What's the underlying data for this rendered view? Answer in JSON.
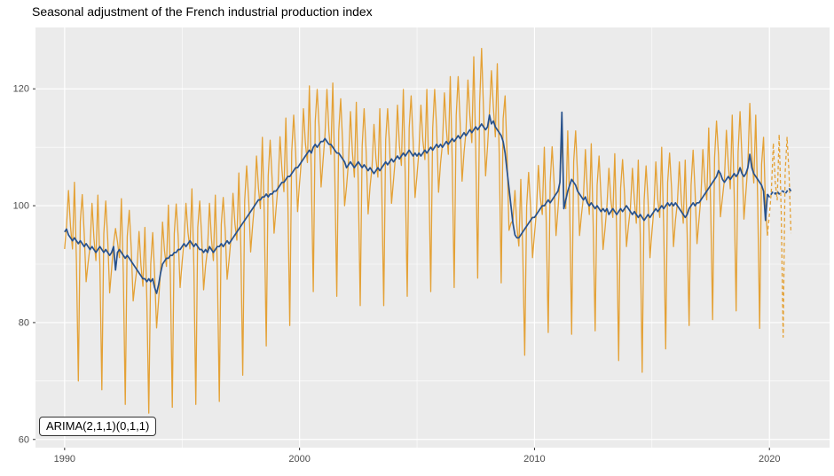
{
  "title": "Seasonal adjustment of the French industrial production index",
  "chart_data": {
    "type": "line",
    "title": "Seasonal adjustment of the French industrial production index",
    "xlabel": "",
    "ylabel": "",
    "frequency": "monthly",
    "xlim": [
      1988.76,
      2022.56
    ],
    "ylim": [
      58.6,
      130.5
    ],
    "x_ticks": {
      "values": [
        1990,
        2000,
        2010,
        2020
      ],
      "labels": [
        "1990",
        "2000",
        "2010",
        "2020"
      ]
    },
    "y_ticks": {
      "values": [
        60,
        80,
        100,
        120
      ],
      "labels": [
        "60",
        "80",
        "100",
        "120"
      ]
    },
    "x_minor": [
      1995,
      2005,
      2015
    ],
    "y_minor": [
      70,
      90,
      110
    ],
    "grid": true,
    "legend": "none",
    "annotation": {
      "text": "ARIMA(2,1,1)(0,1,1)"
    },
    "colors": {
      "raw": "#E4A135",
      "adjusted": "#27518C",
      "panel_bg": "#EBEBEB",
      "grid": "#FFFFFF",
      "tick_text": "#4D4D4D",
      "tick_mark": "#333333"
    },
    "series": [
      {
        "name": "raw-index-observed",
        "style": "solid",
        "color_key": "raw",
        "start": 1990,
        "values": [
          92.6,
          96.5,
          102.6,
          96.4,
          92.6,
          104.0,
          90.7,
          70.0,
          97.3,
          101.9,
          95.3,
          87.0,
          90.2,
          93.0,
          100.4,
          94.4,
          90.6,
          101.8,
          89.7,
          68.5,
          95.2,
          100.8,
          94.3,
          85.1,
          89.2,
          93.5,
          96.1,
          93.8,
          91.1,
          101.2,
          88.3,
          66.0,
          94.7,
          99.2,
          92.8,
          83.7,
          86.8,
          89.4,
          95.6,
          89.8,
          86.2,
          96.3,
          84.0,
          64.5,
          90.0,
          95.4,
          88.2,
          79.1,
          83.9,
          88.9,
          97.2,
          92.3,
          89.6,
          100.1,
          88.3,
          65.5,
          95.2,
          100.3,
          94.8,
          86.0,
          90.2,
          94.0,
          100.4,
          95.4,
          92.6,
          102.9,
          89.7,
          66.0,
          96.3,
          100.8,
          94.8,
          85.6,
          89.7,
          92.5,
          100.4,
          94.4,
          90.6,
          101.8,
          89.7,
          66.5,
          96.8,
          101.4,
          95.8,
          87.4,
          90.7,
          94.5,
          102.1,
          96.9,
          94.1,
          105.6,
          93.1,
          71.0,
          100.9,
          106.8,
          101.0,
          92.1,
          96.5,
          100.5,
          108.5,
          103.0,
          99.5,
          111.7,
          98.0,
          76.0,
          105.1,
          111.2,
          104.6,
          95.3,
          99.4,
          103.5,
          111.8,
          106.1,
          102.4,
          115.0,
          101.3,
          79.5,
          109.2,
          115.5,
          109.2,
          99.0,
          103.8,
          108.0,
          116.6,
          110.7,
          107.4,
          120.5,
          105.2,
          85.3,
          114.4,
          119.9,
          113.3,
          103.2,
          107.7,
          112.1,
          119.9,
          112.7,
          108.8,
          121.0,
          105.7,
          84.5,
          112.8,
          118.3,
          110.7,
          100.0,
          103.3,
          107.5,
          116.1,
          109.1,
          104.9,
          117.7,
          103.7,
          82.9,
          110.2,
          116.6,
          109.2,
          98.6,
          103.3,
          106.5,
          113.9,
          108.1,
          104.9,
          116.6,
          102.8,
          82.9,
          111.3,
          116.6,
          110.2,
          100.4,
          104.3,
          108.5,
          117.2,
          110.2,
          106.9,
          119.9,
          104.7,
          84.5,
          113.3,
          118.8,
          111.2,
          101.4,
          105.2,
          109.5,
          117.2,
          111.2,
          107.9,
          119.9,
          105.7,
          85.3,
          113.3,
          119.9,
          113.3,
          102.3,
          107.2,
          110.6,
          119.3,
          113.2,
          108.8,
          122.1,
          107.6,
          86.0,
          115.4,
          122.1,
          114.3,
          104.2,
          109.1,
          112.6,
          121.5,
          115.3,
          110.8,
          125.5,
          109.5,
          87.6,
          117.5,
          126.9,
          116.3,
          105.1,
          110.1,
          116.1,
          123.1,
          116.8,
          111.8,
          124.3,
          108.6,
          86.8,
          114.9,
          118.8,
          108.7,
          95.8,
          97.0,
          97.5,
          102.6,
          96.4,
          93.1,
          104.5,
          92.2,
          74.4,
          99.9,
          105.7,
          99.9,
          91.1,
          95.1,
          99.0,
          106.9,
          101.5,
          98.5,
          110.0,
          97.0,
          78.3,
          104.0,
          110.1,
          104.0,
          94.9,
          99.4,
          104.5,
          111.8,
          101.5,
          99.5,
          112.8,
          99.9,
          78.0,
          107.6,
          112.8,
          105.1,
          94.9,
          98.5,
          101.5,
          109.6,
          102.5,
          98.5,
          110.6,
          96.5,
          78.6,
          103.5,
          108.5,
          101.5,
          92.5,
          96.0,
          100.0,
          106.4,
          101.0,
          98.0,
          108.9,
          95.1,
          73.5,
          103.0,
          107.9,
          102.0,
          93.0,
          96.5,
          99.5,
          106.4,
          101.0,
          97.0,
          107.8,
          95.1,
          71.5,
          100.9,
          106.8,
          101.0,
          91.1,
          95.5,
          99.5,
          107.5,
          101.0,
          98.0,
          110.0,
          96.0,
          75.5,
          104.0,
          109.0,
          103.0,
          93.0,
          97.5,
          100.5,
          107.5,
          101.0,
          97.0,
          107.8,
          95.1,
          79.5,
          103.5,
          109.5,
          102.5,
          93.5,
          97.5,
          101.5,
          109.6,
          104.0,
          101.0,
          113.3,
          99.9,
          80.5,
          108.2,
          114.5,
          108.7,
          98.1,
          101.4,
          104.5,
          112.9,
          107.1,
          102.9,
          115.5,
          101.8,
          82.0,
          109.2,
          116.1,
          108.1,
          97.7,
          102.3,
          107.0,
          117.5,
          108.6,
          103.9,
          115.5,
          100.8,
          79.0,
          107.1,
          111.7,
          99.9,
          94.9
        ]
      },
      {
        "name": "seasonally-adjusted-observed",
        "style": "solid",
        "color_key": "adjusted",
        "start": 1990,
        "values": [
          95.5,
          96,
          95,
          94.5,
          94,
          94.5,
          94,
          93.5,
          94,
          93.5,
          93,
          93.5,
          93,
          92.5,
          93,
          92.5,
          92,
          92.5,
          93,
          92.5,
          92,
          92.5,
          92,
          91.5,
          92,
          93,
          89,
          92,
          92.5,
          92,
          91.5,
          91,
          91.5,
          91,
          90.5,
          90,
          89.5,
          89,
          88.5,
          88,
          87.5,
          87.5,
          87,
          87.5,
          87,
          87.5,
          86,
          85,
          86.5,
          88.5,
          90,
          90.5,
          91,
          91,
          91.5,
          91.5,
          92,
          92,
          92.5,
          92.5,
          93,
          93.5,
          93,
          93.5,
          94,
          93.5,
          93,
          93.5,
          93,
          92.5,
          92.5,
          92,
          92.5,
          92,
          93,
          92.5,
          92,
          92.5,
          93,
          93,
          93.5,
          93,
          93.5,
          94,
          93.5,
          94,
          94.5,
          95,
          95.5,
          96,
          96.5,
          97,
          97.5,
          98,
          98.5,
          99,
          99.5,
          100,
          100.5,
          101,
          101,
          101.5,
          101.5,
          102,
          101.5,
          102,
          102,
          102.5,
          102.5,
          103,
          103.5,
          104,
          104,
          104.5,
          105,
          105,
          105.5,
          106,
          106.5,
          106.5,
          107,
          107.5,
          108,
          108.5,
          109,
          109.5,
          109,
          110,
          110.5,
          110,
          110.5,
          111,
          111,
          111.5,
          111,
          110.5,
          110.5,
          110,
          109.5,
          109,
          109,
          108.5,
          108,
          107.5,
          106.5,
          107,
          107.5,
          107,
          106.5,
          107,
          107.5,
          107,
          106.5,
          107,
          106.5,
          106,
          106.5,
          106,
          105.5,
          106,
          106.5,
          106,
          106.5,
          107,
          107.5,
          107,
          107.5,
          108,
          107.5,
          108,
          108.5,
          108,
          108.5,
          109,
          108.5,
          109,
          109.5,
          109,
          108.5,
          109,
          108.5,
          109,
          108.5,
          109,
          109.5,
          109,
          109.5,
          110,
          109.5,
          110,
          110.5,
          110,
          110.5,
          110,
          110.5,
          111,
          110.5,
          111,
          111.5,
          111,
          111.5,
          112,
          111.5,
          112,
          112.5,
          112,
          112.5,
          113,
          112.5,
          113,
          113.5,
          113,
          113.5,
          114,
          113.5,
          113,
          113.5,
          115.5,
          114,
          114.5,
          113.5,
          113,
          112.5,
          112,
          111,
          109,
          106,
          103,
          100,
          97,
          95,
          94.5,
          94.5,
          95,
          95.5,
          96,
          96.5,
          97,
          97.5,
          98,
          98,
          98.5,
          99,
          99.5,
          100,
          100,
          100.5,
          101,
          100.5,
          101,
          101.5,
          102,
          102.5,
          104,
          116,
          99.5,
          101,
          102.5,
          103.5,
          104.5,
          104,
          103.5,
          102.5,
          102,
          101.5,
          101,
          101.5,
          100.5,
          100,
          100.5,
          100,
          99.5,
          100,
          99.5,
          99,
          99.5,
          99,
          99.5,
          98.5,
          99,
          99.5,
          99,
          98.5,
          99,
          99.5,
          99,
          99.5,
          100,
          99.5,
          99,
          98.5,
          99,
          98.5,
          98,
          98.5,
          98,
          97.5,
          98,
          98.5,
          98,
          98.5,
          99,
          99.5,
          99,
          99.5,
          100,
          99.5,
          100,
          100.5,
          100,
          100.5,
          100,
          100.5,
          100,
          99.5,
          99,
          98.5,
          98,
          98.5,
          99.5,
          100,
          100.5,
          100,
          100.5,
          100.5,
          101,
          101.5,
          102,
          102.5,
          103,
          103.5,
          104,
          104.5,
          105,
          106,
          105.5,
          104.5,
          104,
          104.5,
          105,
          104.5,
          105,
          105.5,
          105,
          105.5,
          106.5,
          105.5,
          105,
          105.5,
          106.5,
          108.8,
          106.5,
          105.5,
          105,
          104.5,
          104,
          103.5,
          102.5,
          97.5,
          102
        ]
      },
      {
        "name": "raw-index-forecast",
        "style": "dashed",
        "color_key": "raw",
        "start": 2020,
        "values": [
          98.5,
          102.5,
          110.7,
          104.0,
          101.0,
          112.2,
          98.9,
          77.5,
          105.6,
          111.7,
          105.6,
          95.3
        ]
      },
      {
        "name": "seasonally-adjusted-forecast",
        "style": "dashed",
        "color_key": "adjusted",
        "start": 2020,
        "values": [
          101.5,
          102,
          102.5,
          102,
          102.5,
          102,
          102.5,
          102.5,
          102,
          102.5,
          103,
          102.5
        ]
      }
    ]
  }
}
